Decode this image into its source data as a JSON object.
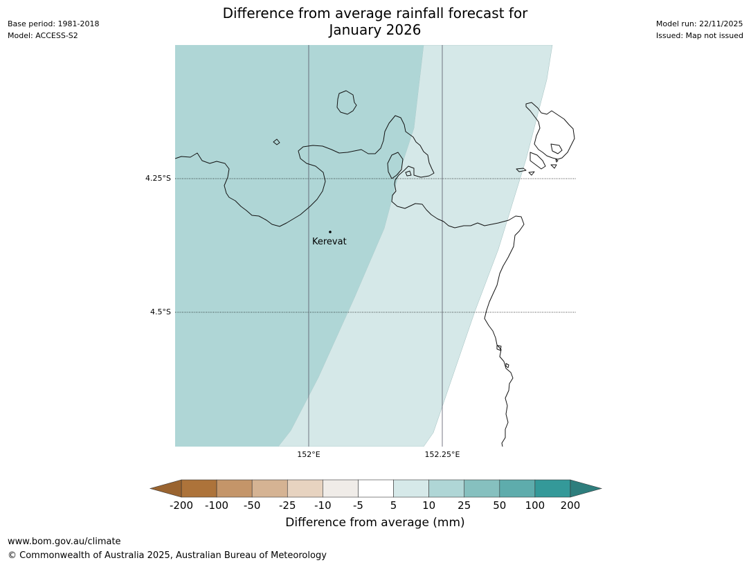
{
  "header": {
    "title_line1": "Difference from average rainfall forecast for",
    "title_line2": "January 2026",
    "base_period": "Base period: 1981-2018",
    "model": "Model: ACCESS-S2",
    "model_run": "Model run: 22/11/2025",
    "issued": "Issued: Map not issued"
  },
  "map": {
    "latitude_labels": [
      "4.25°S",
      "4.5°S"
    ],
    "longitude_labels": [
      "152°E",
      "152.25°E"
    ],
    "place": {
      "name": "Kerevat"
    },
    "zone_colors": {
      "10_to_25": "#afd6d6",
      "5_to_10": "#d5e8e8"
    }
  },
  "colorbar": {
    "label": "Difference from average (mm)",
    "ticks": [
      "-200",
      "-100",
      "-50",
      "-25",
      "-10",
      "-5",
      "5",
      "10",
      "25",
      "50",
      "100",
      "200"
    ],
    "colors": {
      "under": "#9a6430",
      "bins": [
        "#ad733a",
        "#c49569",
        "#d5b393",
        "#e7d3c0",
        "#f0ece8",
        "#ffffff",
        "#d6e9e9",
        "#afd6d6",
        "#86c0bf",
        "#5eacac",
        "#349999"
      ],
      "over": "#2e7e7d"
    }
  },
  "footer": {
    "url": "www.bom.gov.au/climate",
    "copyright": "© Commonwealth of Australia 2025, Australian Bureau of Meteorology"
  }
}
